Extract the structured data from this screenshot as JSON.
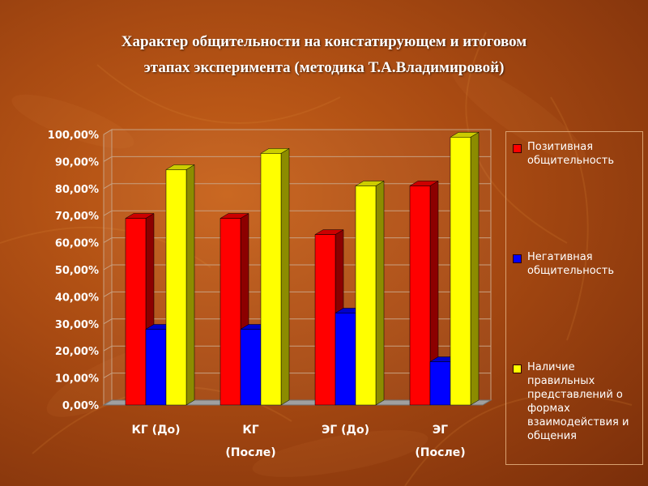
{
  "title_line1": "Характер общительности на констатирующем и итоговом",
  "title_line2": "этапах эксперимента (методика Т.А.Владимировой)",
  "chart_data": {
    "type": "bar",
    "categories": [
      [
        "КГ (До)"
      ],
      [
        "КГ",
        "(После)"
      ],
      [
        "ЭГ (До)"
      ],
      [
        "ЭГ",
        "(После)"
      ]
    ],
    "series": [
      {
        "name": "Позитивная общительность",
        "color": "#ff0000",
        "values": [
          0.69,
          0.69,
          0.63,
          0.81
        ]
      },
      {
        "name": "Негативная общительность",
        "color": "#0000ff",
        "values": [
          0.28,
          0.28,
          0.34,
          0.16
        ]
      },
      {
        "name": "Наличие правильных представлений о формах взаимодействия и общения",
        "color": "#ffff00",
        "values": [
          0.87,
          0.93,
          0.81,
          0.99
        ]
      }
    ],
    "ylim": [
      0,
      1
    ],
    "yticks": [
      "0,00%",
      "10,00%",
      "20,00%",
      "30,00%",
      "40,00%",
      "50,00%",
      "60,00%",
      "70,00%",
      "80,00%",
      "90,00%",
      "100,00%"
    ],
    "grid": true,
    "legend": "right",
    "style": "3d"
  }
}
